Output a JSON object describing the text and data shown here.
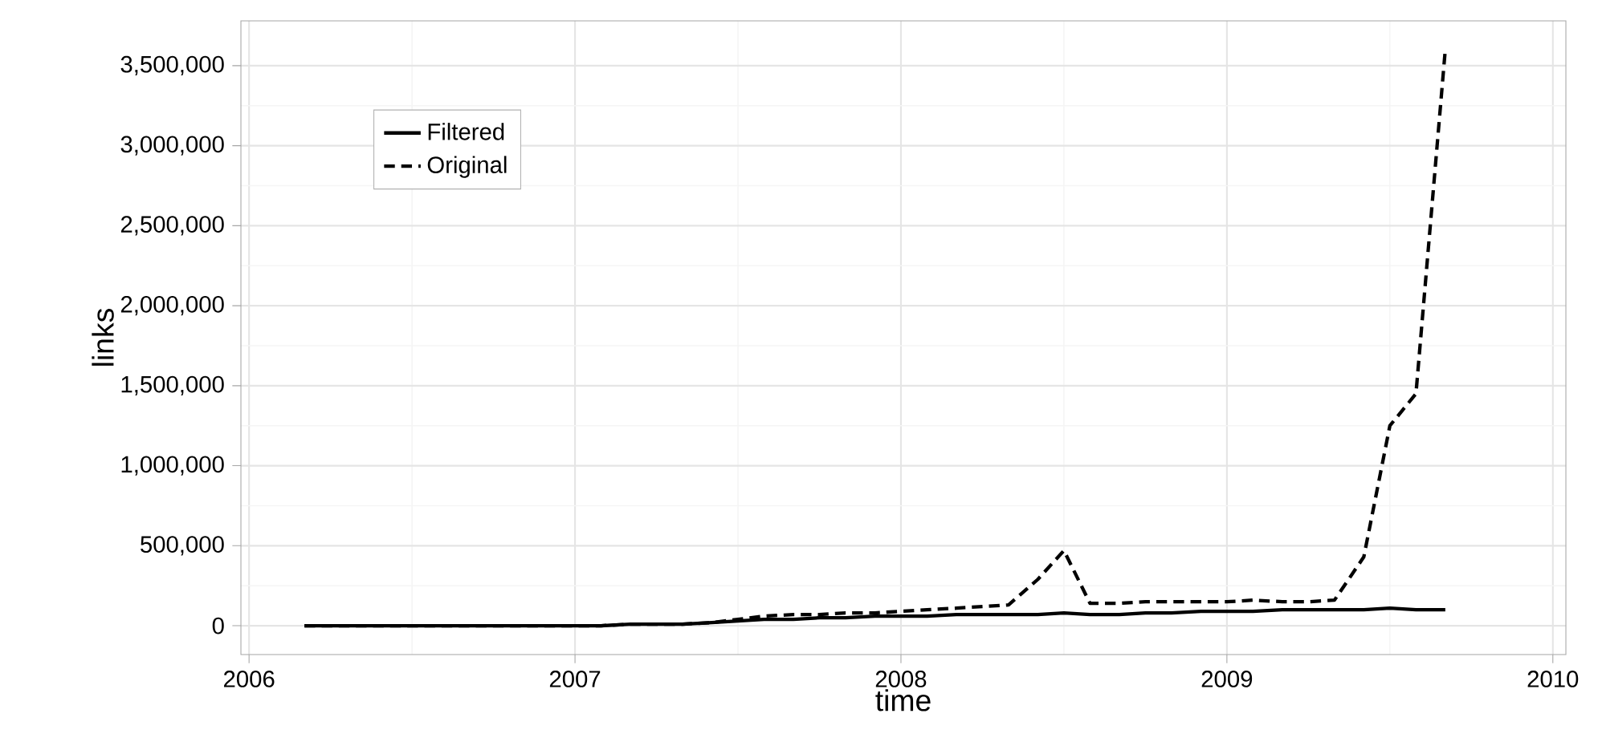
{
  "chart_data": {
    "type": "line",
    "xlabel": "time",
    "ylabel": "links",
    "x": [
      2006.17,
      2006.25,
      2006.33,
      2006.42,
      2006.5,
      2006.58,
      2006.67,
      2006.75,
      2006.83,
      2006.92,
      2007.0,
      2007.08,
      2007.17,
      2007.25,
      2007.33,
      2007.42,
      2007.5,
      2007.58,
      2007.67,
      2007.75,
      2007.83,
      2007.92,
      2008.0,
      2008.08,
      2008.17,
      2008.25,
      2008.33,
      2008.42,
      2008.5,
      2008.58,
      2008.67,
      2008.75,
      2008.83,
      2008.92,
      2009.0,
      2009.08,
      2009.17,
      2009.25,
      2009.33,
      2009.42,
      2009.5,
      2009.58,
      2009.67
    ],
    "series": [
      {
        "name": "Filtered",
        "color": "#000000",
        "line_style": "solid",
        "values": [
          0,
          0,
          0,
          0,
          0,
          0,
          0,
          0,
          0,
          0,
          0,
          0,
          10000,
          10000,
          10000,
          20000,
          30000,
          40000,
          40000,
          50000,
          50000,
          60000,
          60000,
          60000,
          70000,
          70000,
          70000,
          70000,
          80000,
          70000,
          70000,
          80000,
          80000,
          90000,
          90000,
          90000,
          100000,
          100000,
          100000,
          100000,
          110000,
          100000,
          100000
        ]
      },
      {
        "name": "Original",
        "color": "#000000",
        "line_style": "dashed",
        "values": [
          0,
          0,
          0,
          0,
          0,
          0,
          0,
          0,
          0,
          0,
          0,
          0,
          10000,
          10000,
          10000,
          20000,
          40000,
          60000,
          70000,
          70000,
          80000,
          80000,
          90000,
          100000,
          110000,
          120000,
          130000,
          290000,
          470000,
          140000,
          140000,
          150000,
          150000,
          150000,
          150000,
          160000,
          150000,
          150000,
          160000,
          430000,
          1250000,
          1450000,
          3600000
        ]
      }
    ],
    "xlim": [
      2005.975,
      2010.04
    ],
    "xticks": [
      2006,
      2007,
      2008,
      2009,
      2010
    ],
    "ylim": [
      -180000,
      3780000
    ],
    "yticks": [
      0,
      {
        "value": 500000,
        "label": "500,000"
      },
      {
        "value": 1000000,
        "label": "1,000,000"
      },
      {
        "value": 1500000,
        "label": "1,500,000"
      },
      {
        "value": 2000000,
        "label": "2,000,000"
      },
      {
        "value": 2500000,
        "label": "2,500,000"
      },
      {
        "value": 3000000,
        "label": "3,000,000"
      },
      {
        "value": 3500000,
        "label": "3,500,000"
      }
    ],
    "grid": true,
    "legend": "top left"
  }
}
